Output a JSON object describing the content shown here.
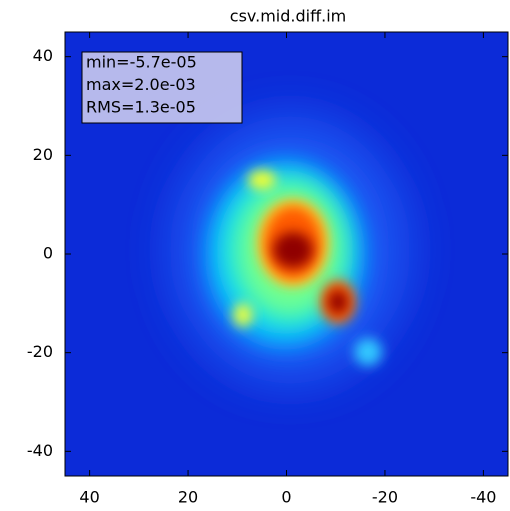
{
  "chart_data": {
    "type": "image",
    "title": "csv.mid.diff.im",
    "annotations": [
      "min=-5.7e-05",
      "max=2.0e-03",
      "RMS=1.3e-05"
    ],
    "xlim": [
      45,
      -45
    ],
    "xticks": [
      40,
      20,
      0,
      -20,
      -40
    ],
    "ylim": [
      -45,
      45
    ],
    "yticks": [
      40,
      20,
      0,
      -20,
      -40
    ]
  }
}
